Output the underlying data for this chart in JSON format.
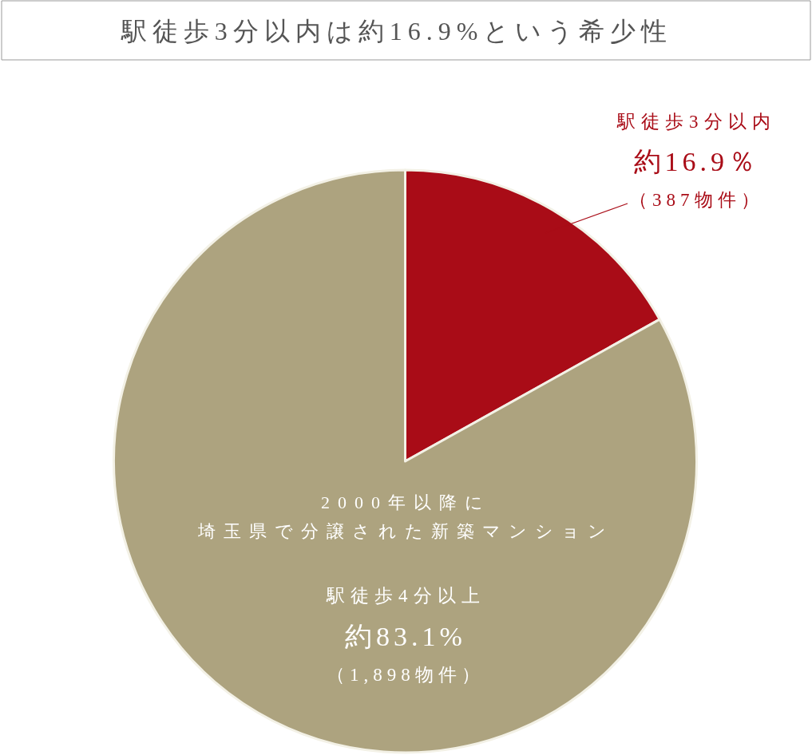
{
  "chart_data": {
    "type": "pie",
    "title": "駅徒歩3分以内は約16.9%という希少性",
    "categories": [
      "駅徒歩3分以内",
      "駅徒歩4分以上"
    ],
    "values": [
      16.9,
      83.1
    ],
    "colors": [
      "#a90c17",
      "#ada37f"
    ],
    "value_labels": [
      "約16.9％（387物件）",
      "約83.1%（1,898物件）"
    ],
    "annotations": [
      "2000年以降に埼玉県で分譲された新築マンション"
    ]
  }
}
